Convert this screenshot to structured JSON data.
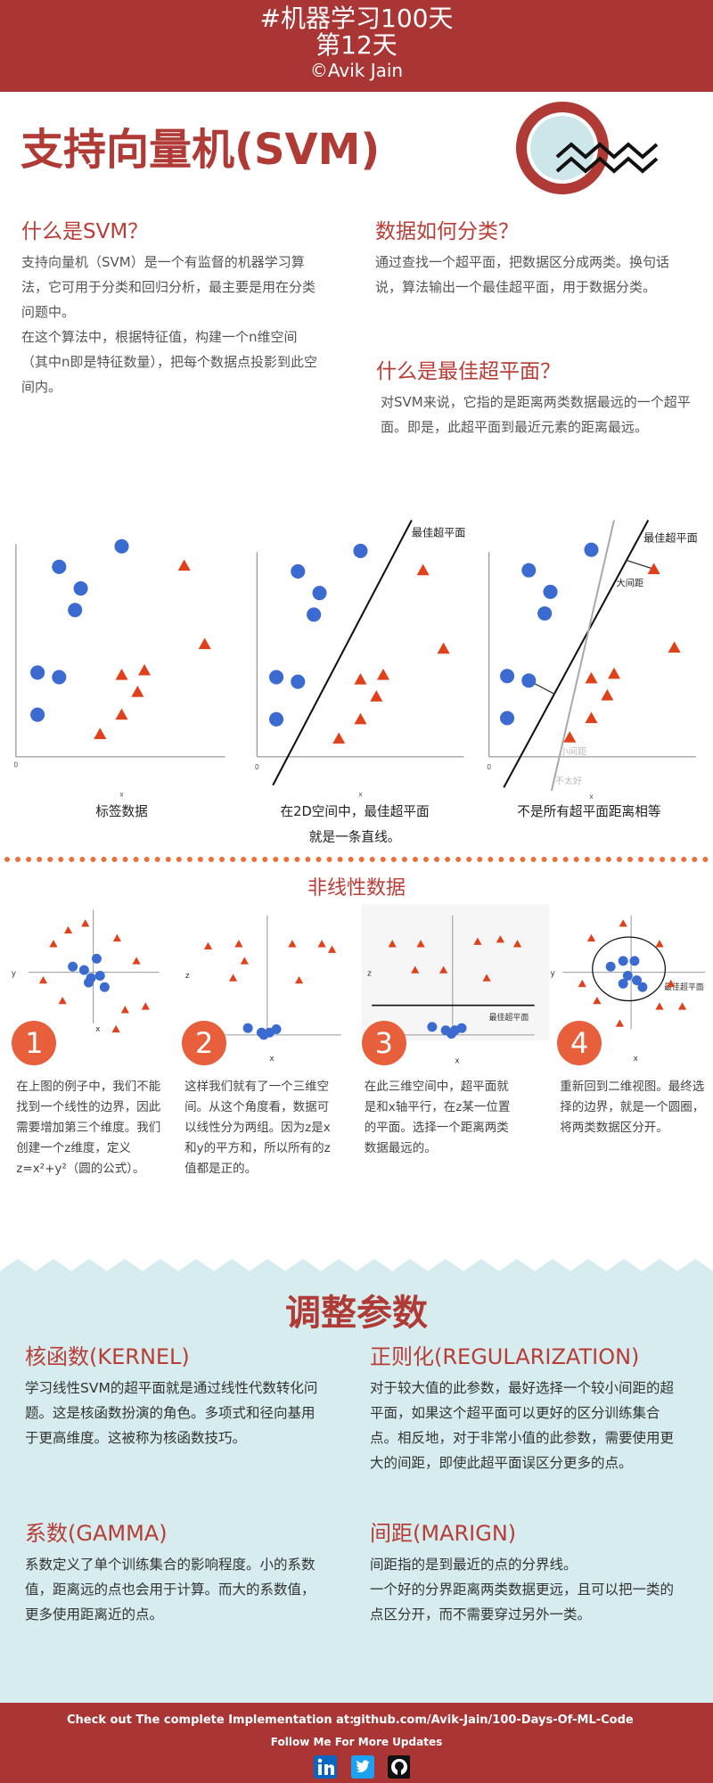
{
  "header": {
    "title": "#机器学习100天",
    "day": "第12天",
    "author": "©Avik Jain"
  },
  "title": "支持向量机(SVM)",
  "sections": [
    {
      "heading": "什么是SVM？",
      "paragraphs": [
        "支持向量机（SVM）是一个有监督的机器学习算法，它可用于分类和回归分析，最主要是用在分类问题中。",
        "在这个算法中，根据特征值，构建一个n维空间（其中n即是特征数量），把每个数据点投影到此空间内。"
      ]
    },
    {
      "heading": "数据如何分类？",
      "paragraphs": [
        "通过查找一个超平面，把数据区分成两类。换句话说，算法输出一个最佳超平面，用于数据分类。"
      ]
    },
    {
      "heading": "什么是最佳超平面？",
      "paragraphs": [
        "对SVM来说，它指的是距离两类数据最远的一个超平面。即是，此超平面到最近元素的距离最远。"
      ]
    }
  ],
  "linear_plots": [
    {
      "origin": "0",
      "x_label": "x",
      "caption": [
        "标签数据"
      ]
    },
    {
      "origin": "0",
      "x_label": "x",
      "caption": [
        "在2D空间中，最佳超平面",
        "就是一条直线。"
      ],
      "labels": [
        "最佳超平面"
      ]
    },
    {
      "origin": "0",
      "x_label": "x",
      "caption": [
        "不是所有超平面距离相等"
      ],
      "labels": [
        "最佳超平面",
        "大间距",
        "小间距",
        "不太好"
      ]
    }
  ],
  "nonlinear": {
    "title": "非线性数据",
    "steps": [
      {
        "number": "1",
        "x_label": "x",
        "y_label": "y",
        "text": "在上图的例子中，我们不能找到一个线性的边界，因此需要增加第三个维度。我们创建一个z维度，定义z=x²+y²（圆的公式）。"
      },
      {
        "number": "2",
        "x_label": "x",
        "y_label": "z",
        "text": "这样我们就有了一个三维空间。从这个角度看，数据可以线性分为两组。因为z是x和y的平方和，所以所有的z值都是正的。"
      },
      {
        "number": "3",
        "x_label": "x",
        "y_label": "z",
        "label": "最佳超平面",
        "text": "在此三维空间中，超平面就是和x轴平行，在z某一位置的平面。选择一个距离两类数据最远的。"
      },
      {
        "number": "4",
        "x_label": "x",
        "y_label": "y",
        "label": "最佳超平面",
        "text": "重新回到二维视图。最终选择的边界，就是一个圆圈，将两类数据区分开。"
      }
    ]
  },
  "tuning": {
    "title": "调整参数",
    "items": [
      {
        "heading": "核函数(KERNEL)",
        "paragraphs": [
          "学习线性SVM的超平面就是通过线性代数转化问题。这是核函数扮演的角色。多项式和径向基用于更高维度。这被称为核函数技巧。"
        ]
      },
      {
        "heading": "正则化(REGULARIZATION)",
        "paragraphs": [
          "对于较大值的此参数，最好选择一个较小间距的超平面，如果这个超平面可以更好的区分训练集合点。相反地，对于非常小值的此参数，需要使用更大的间距，即使此超平面误区分更多的点。"
        ]
      },
      {
        "heading": "系数(GAMMA)",
        "paragraphs": [
          "系数定义了单个训练集合的影响程度。小的系数值，距离远的点也会用于计算。而大的系数值，更多使用距离近的点。"
        ]
      },
      {
        "heading": "间距(MARIGN)",
        "paragraphs": [
          "间距指的是到最近的点的分界线。",
          "一个好的分界距离两类数据更远，且可以把一类的点区分开，而不需要穿过另外一类。"
        ]
      }
    ]
  },
  "footer": {
    "cta": "Check out The complete Implementation at:",
    "link": "github.com/Avik-Jain/100-Days-Of-ML-Code",
    "follow": "Follow Me For More Updates"
  }
}
